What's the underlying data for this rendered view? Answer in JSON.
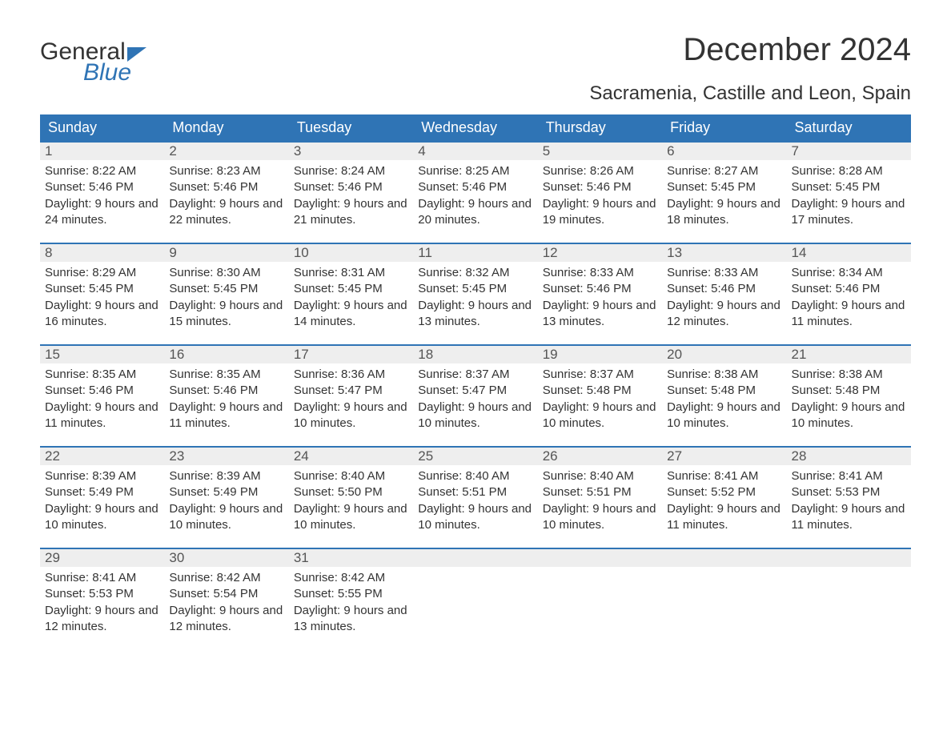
{
  "logo": {
    "text1": "General",
    "text2": "Blue"
  },
  "title": "December 2024",
  "location": "Sacramenia, Castille and Leon, Spain",
  "colors": {
    "header_bg": "#2f74b5",
    "header_text": "#ffffff",
    "daynum_bg": "#eeeeee",
    "daynum_text": "#555555",
    "body_text": "#333333",
    "accent_border": "#2f74b5",
    "page_bg": "#ffffff"
  },
  "day_names": [
    "Sunday",
    "Monday",
    "Tuesday",
    "Wednesday",
    "Thursday",
    "Friday",
    "Saturday"
  ],
  "weeks": [
    [
      {
        "n": "1",
        "sunrise": "Sunrise: 8:22 AM",
        "sunset": "Sunset: 5:46 PM",
        "daylight": "Daylight: 9 hours and 24 minutes."
      },
      {
        "n": "2",
        "sunrise": "Sunrise: 8:23 AM",
        "sunset": "Sunset: 5:46 PM",
        "daylight": "Daylight: 9 hours and 22 minutes."
      },
      {
        "n": "3",
        "sunrise": "Sunrise: 8:24 AM",
        "sunset": "Sunset: 5:46 PM",
        "daylight": "Daylight: 9 hours and 21 minutes."
      },
      {
        "n": "4",
        "sunrise": "Sunrise: 8:25 AM",
        "sunset": "Sunset: 5:46 PM",
        "daylight": "Daylight: 9 hours and 20 minutes."
      },
      {
        "n": "5",
        "sunrise": "Sunrise: 8:26 AM",
        "sunset": "Sunset: 5:46 PM",
        "daylight": "Daylight: 9 hours and 19 minutes."
      },
      {
        "n": "6",
        "sunrise": "Sunrise: 8:27 AM",
        "sunset": "Sunset: 5:45 PM",
        "daylight": "Daylight: 9 hours and 18 minutes."
      },
      {
        "n": "7",
        "sunrise": "Sunrise: 8:28 AM",
        "sunset": "Sunset: 5:45 PM",
        "daylight": "Daylight: 9 hours and 17 minutes."
      }
    ],
    [
      {
        "n": "8",
        "sunrise": "Sunrise: 8:29 AM",
        "sunset": "Sunset: 5:45 PM",
        "daylight": "Daylight: 9 hours and 16 minutes."
      },
      {
        "n": "9",
        "sunrise": "Sunrise: 8:30 AM",
        "sunset": "Sunset: 5:45 PM",
        "daylight": "Daylight: 9 hours and 15 minutes."
      },
      {
        "n": "10",
        "sunrise": "Sunrise: 8:31 AM",
        "sunset": "Sunset: 5:45 PM",
        "daylight": "Daylight: 9 hours and 14 minutes."
      },
      {
        "n": "11",
        "sunrise": "Sunrise: 8:32 AM",
        "sunset": "Sunset: 5:45 PM",
        "daylight": "Daylight: 9 hours and 13 minutes."
      },
      {
        "n": "12",
        "sunrise": "Sunrise: 8:33 AM",
        "sunset": "Sunset: 5:46 PM",
        "daylight": "Daylight: 9 hours and 13 minutes."
      },
      {
        "n": "13",
        "sunrise": "Sunrise: 8:33 AM",
        "sunset": "Sunset: 5:46 PM",
        "daylight": "Daylight: 9 hours and 12 minutes."
      },
      {
        "n": "14",
        "sunrise": "Sunrise: 8:34 AM",
        "sunset": "Sunset: 5:46 PM",
        "daylight": "Daylight: 9 hours and 11 minutes."
      }
    ],
    [
      {
        "n": "15",
        "sunrise": "Sunrise: 8:35 AM",
        "sunset": "Sunset: 5:46 PM",
        "daylight": "Daylight: 9 hours and 11 minutes."
      },
      {
        "n": "16",
        "sunrise": "Sunrise: 8:35 AM",
        "sunset": "Sunset: 5:46 PM",
        "daylight": "Daylight: 9 hours and 11 minutes."
      },
      {
        "n": "17",
        "sunrise": "Sunrise: 8:36 AM",
        "sunset": "Sunset: 5:47 PM",
        "daylight": "Daylight: 9 hours and 10 minutes."
      },
      {
        "n": "18",
        "sunrise": "Sunrise: 8:37 AM",
        "sunset": "Sunset: 5:47 PM",
        "daylight": "Daylight: 9 hours and 10 minutes."
      },
      {
        "n": "19",
        "sunrise": "Sunrise: 8:37 AM",
        "sunset": "Sunset: 5:48 PM",
        "daylight": "Daylight: 9 hours and 10 minutes."
      },
      {
        "n": "20",
        "sunrise": "Sunrise: 8:38 AM",
        "sunset": "Sunset: 5:48 PM",
        "daylight": "Daylight: 9 hours and 10 minutes."
      },
      {
        "n": "21",
        "sunrise": "Sunrise: 8:38 AM",
        "sunset": "Sunset: 5:48 PM",
        "daylight": "Daylight: 9 hours and 10 minutes."
      }
    ],
    [
      {
        "n": "22",
        "sunrise": "Sunrise: 8:39 AM",
        "sunset": "Sunset: 5:49 PM",
        "daylight": "Daylight: 9 hours and 10 minutes."
      },
      {
        "n": "23",
        "sunrise": "Sunrise: 8:39 AM",
        "sunset": "Sunset: 5:49 PM",
        "daylight": "Daylight: 9 hours and 10 minutes."
      },
      {
        "n": "24",
        "sunrise": "Sunrise: 8:40 AM",
        "sunset": "Sunset: 5:50 PM",
        "daylight": "Daylight: 9 hours and 10 minutes."
      },
      {
        "n": "25",
        "sunrise": "Sunrise: 8:40 AM",
        "sunset": "Sunset: 5:51 PM",
        "daylight": "Daylight: 9 hours and 10 minutes."
      },
      {
        "n": "26",
        "sunrise": "Sunrise: 8:40 AM",
        "sunset": "Sunset: 5:51 PM",
        "daylight": "Daylight: 9 hours and 10 minutes."
      },
      {
        "n": "27",
        "sunrise": "Sunrise: 8:41 AM",
        "sunset": "Sunset: 5:52 PM",
        "daylight": "Daylight: 9 hours and 11 minutes."
      },
      {
        "n": "28",
        "sunrise": "Sunrise: 8:41 AM",
        "sunset": "Sunset: 5:53 PM",
        "daylight": "Daylight: 9 hours and 11 minutes."
      }
    ],
    [
      {
        "n": "29",
        "sunrise": "Sunrise: 8:41 AM",
        "sunset": "Sunset: 5:53 PM",
        "daylight": "Daylight: 9 hours and 12 minutes."
      },
      {
        "n": "30",
        "sunrise": "Sunrise: 8:42 AM",
        "sunset": "Sunset: 5:54 PM",
        "daylight": "Daylight: 9 hours and 12 minutes."
      },
      {
        "n": "31",
        "sunrise": "Sunrise: 8:42 AM",
        "sunset": "Sunset: 5:55 PM",
        "daylight": "Daylight: 9 hours and 13 minutes."
      },
      {
        "empty": true
      },
      {
        "empty": true
      },
      {
        "empty": true
      },
      {
        "empty": true
      }
    ]
  ]
}
